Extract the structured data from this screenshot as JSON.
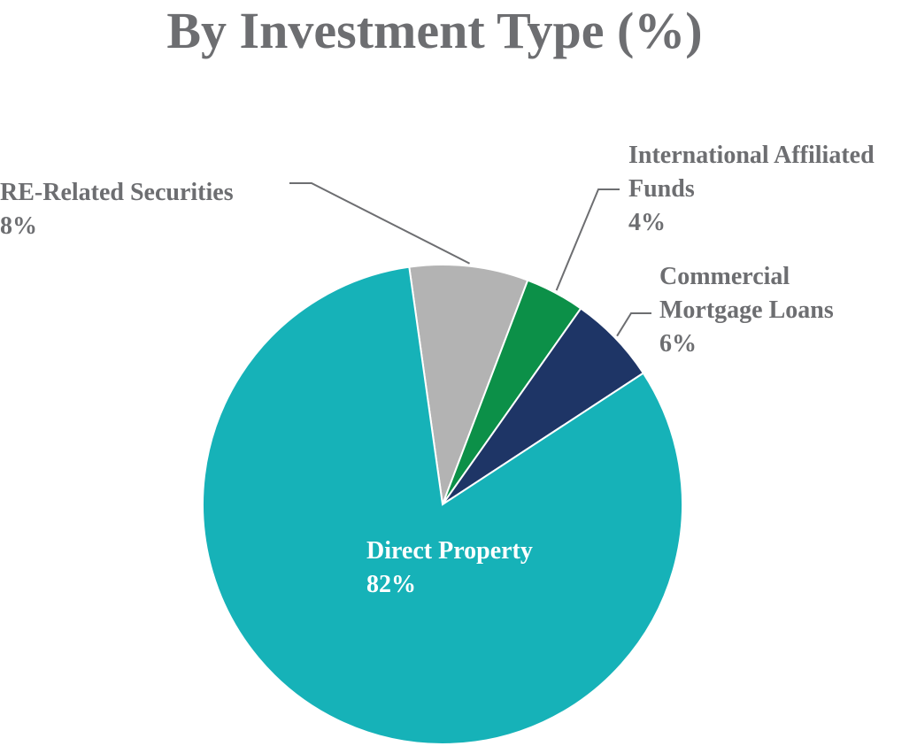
{
  "chart_data": {
    "type": "pie",
    "title": "By Investment Type (%)",
    "start_angle_deg": -8,
    "direction": "clockwise",
    "slices": [
      {
        "label_lines": [
          "RE-Related Securities"
        ],
        "value": 8,
        "value_label": "8%",
        "color": "#b3b3b3"
      },
      {
        "label_lines": [
          "International Affiliated",
          "Funds"
        ],
        "value": 4,
        "value_label": "4%",
        "color": "#0c9048"
      },
      {
        "label_lines": [
          "Commercial",
          "Mortgage Loans"
        ],
        "value": 6,
        "value_label": "6%",
        "color": "#1e3566"
      },
      {
        "label_lines": [
          "Direct Property"
        ],
        "value": 82,
        "value_label": "82%",
        "color": "#16b2b8"
      }
    ],
    "legend": "none"
  }
}
